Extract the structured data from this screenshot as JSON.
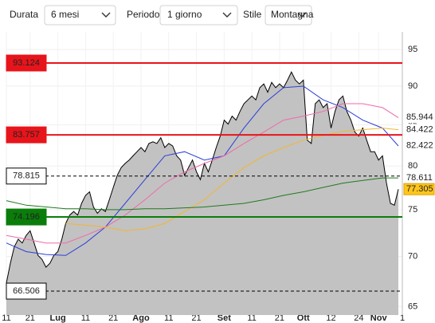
{
  "chart_data": {
    "type": "area",
    "controls": [
      {
        "label": "Durata",
        "value": "6 mesi"
      },
      {
        "label": "Periodo",
        "value": "1 giorno"
      },
      {
        "label": "Stile",
        "value": "Montagna"
      }
    ],
    "log": true,
    "grid": true,
    "xlim": [
      0,
      100
    ],
    "ylim": [
      64.2,
      97.5
    ],
    "yticks": [
      65,
      70,
      75,
      80,
      85,
      90,
      95
    ],
    "xticks": [
      {
        "value": 0,
        "label": "11"
      },
      {
        "value": 6,
        "label": "21"
      },
      {
        "value": 13,
        "label": "Lug"
      },
      {
        "value": 20,
        "label": "11"
      },
      {
        "value": 27,
        "label": "21"
      },
      {
        "value": 34,
        "label": "Ago"
      },
      {
        "value": 41,
        "label": "11"
      },
      {
        "value": 48,
        "label": "21"
      },
      {
        "value": 55,
        "label": "Set"
      },
      {
        "value": 62,
        "label": "11"
      },
      {
        "value": 69,
        "label": "21"
      },
      {
        "value": 75,
        "label": "Ott"
      },
      {
        "value": 82,
        "label": "12"
      },
      {
        "value": 89,
        "label": "24"
      },
      {
        "value": 94,
        "label": "Nov"
      },
      {
        "value": 100,
        "label": "1"
      }
    ],
    "series": [
      {
        "color": "#000000",
        "fill": "#c2c2c2",
        "x": [
          0,
          1,
          2,
          3,
          4,
          5,
          6,
          7,
          8,
          9,
          10,
          11,
          12,
          13,
          14,
          15,
          16,
          17,
          18,
          19,
          20,
          21,
          22,
          23,
          24,
          25,
          26,
          27,
          28,
          29,
          30,
          31,
          32,
          33,
          34,
          35,
          36,
          37,
          38,
          39,
          40,
          41,
          42,
          43,
          44,
          45,
          46,
          47,
          48,
          49,
          50,
          51,
          52,
          53,
          54,
          55,
          56,
          57,
          58,
          59,
          60,
          61,
          62,
          63,
          64,
          65,
          66,
          67,
          68,
          69,
          70,
          71,
          72,
          73,
          74,
          75,
          76,
          77,
          78,
          79,
          80,
          81,
          82,
          83,
          84,
          85,
          86,
          87,
          88,
          89,
          90,
          91,
          92,
          93,
          94,
          95,
          96,
          97,
          98,
          99
        ],
        "values": [
          67.3,
          69.3,
          71.0,
          71.8,
          71.4,
          72.2,
          72.7,
          71.4,
          70.1,
          69.7,
          68.9,
          69.3,
          70.1,
          70.5,
          71.8,
          73.5,
          74.4,
          74.8,
          74.4,
          75.7,
          76.6,
          77.0,
          75.3,
          74.6,
          75.1,
          74.8,
          76.1,
          77.5,
          78.9,
          79.8,
          80.3,
          80.7,
          81.2,
          81.7,
          82.2,
          81.7,
          82.7,
          82.9,
          82.7,
          83.4,
          82.2,
          82.7,
          82.4,
          81.2,
          80.7,
          78.9,
          79.8,
          80.7,
          79.3,
          78.4,
          80.3,
          79.3,
          80.7,
          82.2,
          83.6,
          85.6,
          85.1,
          86.1,
          85.6,
          86.7,
          87.7,
          88.2,
          88.7,
          88.2,
          89.8,
          90.3,
          89.2,
          90.5,
          89.8,
          90.3,
          89.8,
          90.8,
          91.9,
          90.8,
          90.3,
          90.8,
          83.1,
          82.7,
          87.7,
          88.2,
          87.2,
          87.7,
          84.6,
          86.7,
          88.2,
          88.7,
          86.7,
          85.6,
          84.1,
          83.6,
          84.6,
          83.1,
          81.7,
          81.7,
          80.7,
          81.2,
          78.0,
          75.7,
          75.5,
          77.305
        ]
      },
      {
        "color": "#2b3fd6",
        "x": [
          0,
          5,
          10,
          15,
          20,
          25,
          30,
          35,
          40,
          45,
          50,
          55,
          60,
          65,
          70,
          75,
          80,
          85,
          90,
          95,
          99
        ],
        "values": [
          71.4,
          70.5,
          70.2,
          70.1,
          71.4,
          73.1,
          75.7,
          78.4,
          81.2,
          81.7,
          80.7,
          81.2,
          84.6,
          87.7,
          89.8,
          90.0,
          88.2,
          87.2,
          85.6,
          84.6,
          82.4
        ]
      },
      {
        "color": "#f06aa8",
        "x": [
          0,
          5,
          10,
          15,
          20,
          25,
          30,
          35,
          40,
          45,
          50,
          55,
          60,
          65,
          70,
          75,
          80,
          85,
          90,
          95,
          99
        ],
        "values": [
          72.2,
          71.8,
          71.4,
          71.4,
          72.2,
          73.1,
          74.4,
          76.1,
          78.0,
          79.3,
          80.3,
          81.2,
          82.7,
          84.1,
          85.6,
          86.1,
          86.7,
          87.7,
          87.7,
          87.2,
          85.9
        ]
      },
      {
        "color": "#f2b630",
        "x": [
          15,
          20,
          25,
          30,
          35,
          40,
          45,
          50,
          55,
          60,
          65,
          70,
          75,
          80,
          85,
          90,
          95,
          99
        ],
        "values": [
          73.5,
          73.3,
          73.1,
          72.7,
          72.9,
          73.5,
          74.8,
          76.1,
          78.0,
          79.8,
          81.2,
          82.2,
          83.1,
          83.7,
          84.2,
          84.4,
          84.6,
          84.4
        ]
      },
      {
        "color": "#1f7a1f",
        "x": [
          0,
          5,
          10,
          15,
          20,
          25,
          30,
          35,
          40,
          45,
          50,
          55,
          60,
          65,
          70,
          75,
          80,
          85,
          90,
          95,
          99
        ],
        "values": [
          76.0,
          75.5,
          75.3,
          75.1,
          75.1,
          75.0,
          75.0,
          75.1,
          75.1,
          75.2,
          75.3,
          75.5,
          75.7,
          76.1,
          76.6,
          77.0,
          77.5,
          78.0,
          78.3,
          78.6,
          78.6
        ]
      }
    ],
    "levels": [
      {
        "value": 93.124,
        "color": "#e8141b",
        "dashed": false
      },
      {
        "value": 83.757,
        "color": "#e8141b",
        "dashed": false
      },
      {
        "value": 78.815,
        "color": "#000000",
        "dashed": true
      },
      {
        "value": 74.196,
        "color": "#0a7d0a",
        "dashed": false
      },
      {
        "value": 66.506,
        "color": "#000000",
        "dashed": true
      }
    ],
    "right_labels": [
      {
        "value": 85.944,
        "color": "#f06aa8",
        "bg": "#ffffff"
      },
      {
        "value": 84.422,
        "color": "#e8a800",
        "bg": "#ffffff"
      },
      {
        "value": 82.422,
        "color": "#2b3fd6",
        "bg": "#ffffff"
      },
      {
        "value": 78.611,
        "color": "#1f7a1f",
        "bg": "#ffffff"
      },
      {
        "value": 77.305,
        "color": "#000000",
        "bg": "#ffc61a"
      }
    ]
  }
}
